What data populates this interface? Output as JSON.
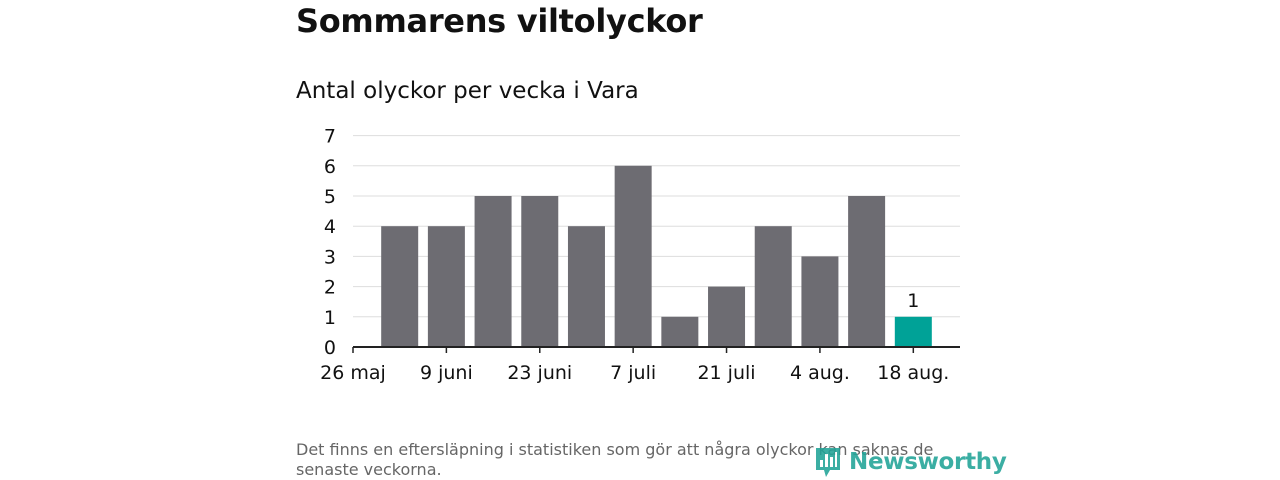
{
  "title": "Sommarens viltolyckor",
  "subtitle": "Antal olyckor per vecka i Vara",
  "footnote": "Det finns en eftersläpning i statistiken som gör att några olyckor kan saknas de senaste veckorna.",
  "brand": {
    "name": "Newsworthy",
    "icon": "newsworthy-logo-icon"
  },
  "colors": {
    "bar": "#6d6c72",
    "highlight": "#00a297",
    "grid": "#dddddd",
    "axis": "#222222"
  },
  "chart_data": {
    "type": "bar",
    "title": "Antal olyckor per vecka i Vara",
    "xlabel": "",
    "ylabel": "",
    "ylim": [
      0,
      7
    ],
    "yticks": [
      "0",
      "1",
      "2",
      "3",
      "4",
      "5",
      "6",
      "7"
    ],
    "xticks": [
      "26 maj",
      "9 juni",
      "23 juni",
      "7 juli",
      "21 juli",
      "4 aug.",
      "18 aug."
    ],
    "values": [
      4,
      4,
      5,
      5,
      4,
      6,
      1,
      2,
      4,
      3,
      5,
      1
    ],
    "highlight_index": 11,
    "data_labels": [
      {
        "index": 11,
        "text": "1"
      }
    ],
    "grid": true,
    "legend": "none"
  }
}
